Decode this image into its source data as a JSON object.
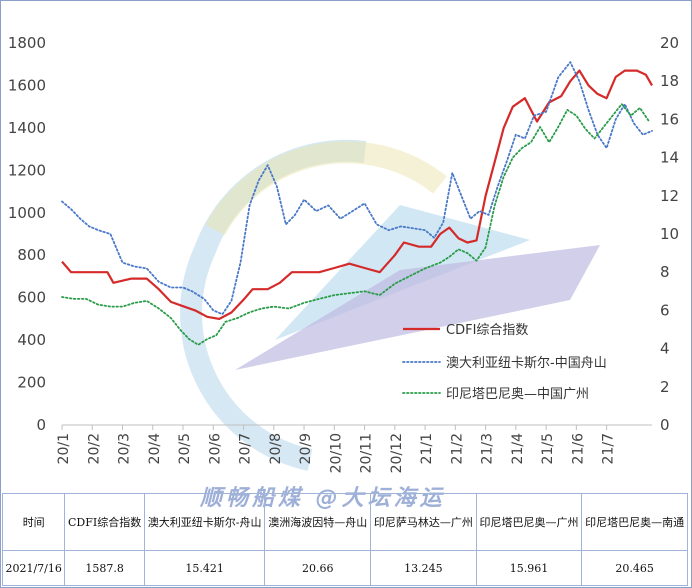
{
  "chart_data": {
    "type": "line",
    "title": "",
    "xlabel": "",
    "ylabel": "",
    "ylim": [
      0,
      1800
    ],
    "y2lim": [
      0,
      20
    ],
    "yticks": [
      0,
      200,
      400,
      600,
      800,
      1000,
      1200,
      1400,
      1600,
      1800
    ],
    "y2ticks": [
      0,
      2,
      4,
      6,
      8,
      10,
      12,
      14,
      16,
      18,
      20
    ],
    "xlim": [
      0,
      19.5
    ],
    "x_tick_labels": [
      "20/1",
      "20/2",
      "20/3",
      "20/4",
      "20/5",
      "20/6",
      "20/7",
      "20/8",
      "20/9",
      "20/10",
      "20/11",
      "20/12",
      "21/1",
      "21/2",
      "21/3",
      "21/4",
      "21/5",
      "21/6",
      "21/7"
    ],
    "legend_position": "center-right",
    "series": [
      {
        "name": "CDFI综合指数",
        "axis": "left",
        "color": "#d42a2a",
        "style": "solid",
        "x": [
          0,
          0.3,
          0.8,
          1.5,
          1.7,
          2.3,
          2.8,
          3.2,
          3.6,
          4.0,
          4.4,
          4.8,
          5.2,
          5.6,
          6.0,
          6.3,
          6.8,
          7.2,
          7.6,
          8.0,
          8.5,
          9.0,
          9.5,
          10.0,
          10.5,
          11.0,
          11.3,
          11.8,
          12.2,
          12.5,
          12.8,
          13.1,
          13.4,
          13.7,
          14.0,
          14.3,
          14.6,
          14.9,
          15.3,
          15.7,
          16.1,
          16.5,
          16.8,
          17.1,
          17.4,
          17.7,
          18.0,
          18.3,
          18.6,
          19.0,
          19.3,
          19.5
        ],
        "y": [
          770,
          720,
          720,
          720,
          670,
          690,
          690,
          640,
          580,
          560,
          540,
          510,
          500,
          530,
          590,
          640,
          640,
          670,
          720,
          720,
          720,
          740,
          760,
          740,
          720,
          800,
          860,
          840,
          840,
          900,
          930,
          880,
          860,
          870,
          1080,
          1240,
          1400,
          1500,
          1540,
          1430,
          1520,
          1550,
          1620,
          1670,
          1600,
          1560,
          1540,
          1640,
          1670,
          1670,
          1650,
          1600
        ]
      },
      {
        "name": "澳大利亚纽卡斯尔-中国舟山",
        "axis": "right",
        "color": "#4a78c8",
        "style": "dotted",
        "x": [
          0,
          0.3,
          0.6,
          0.9,
          1.2,
          1.6,
          2.0,
          2.4,
          2.8,
          3.2,
          3.6,
          4.0,
          4.3,
          4.7,
          5.0,
          5.3,
          5.6,
          5.9,
          6.2,
          6.5,
          6.8,
          7.1,
          7.4,
          7.7,
          8.0,
          8.4,
          8.8,
          9.2,
          9.6,
          10.0,
          10.4,
          10.8,
          11.2,
          11.6,
          12.0,
          12.3,
          12.6,
          12.9,
          13.2,
          13.5,
          13.8,
          14.1,
          14.4,
          14.7,
          15.0,
          15.3,
          15.6,
          16.0,
          16.4,
          16.8,
          17.1,
          17.4,
          17.7,
          18.0,
          18.3,
          18.6,
          18.9,
          19.2,
          19.5
        ],
        "y": [
          11.7,
          11.3,
          10.8,
          10.4,
          10.2,
          10.0,
          8.5,
          8.3,
          8.2,
          7.5,
          7.2,
          7.2,
          7.0,
          6.6,
          6.0,
          5.8,
          6.5,
          8.5,
          11.5,
          12.8,
          13.6,
          12.5,
          10.5,
          11.0,
          11.8,
          11.2,
          11.5,
          10.8,
          11.2,
          11.6,
          10.5,
          10.2,
          10.4,
          10.3,
          10.2,
          9.8,
          10.6,
          13.2,
          12.0,
          10.8,
          11.2,
          11.0,
          12.5,
          13.8,
          15.2,
          15.0,
          16.2,
          16.4,
          18.2,
          19.0,
          18.0,
          16.5,
          15.2,
          14.5,
          16.0,
          16.8,
          15.8,
          15.2,
          15.4
        ]
      },
      {
        "name": "印尼塔巴尼奥—中国广州",
        "axis": "right",
        "color": "#2a9c4a",
        "style": "dotted",
        "x": [
          0,
          0.4,
          0.8,
          1.2,
          1.6,
          2.0,
          2.4,
          2.8,
          3.2,
          3.6,
          3.9,
          4.2,
          4.5,
          4.8,
          5.1,
          5.4,
          5.8,
          6.2,
          6.6,
          7.0,
          7.5,
          8.0,
          8.5,
          9.0,
          9.5,
          10.0,
          10.5,
          11.0,
          11.5,
          12.0,
          12.5,
          12.8,
          13.1,
          13.4,
          13.7,
          14.0,
          14.3,
          14.6,
          14.9,
          15.2,
          15.5,
          15.8,
          16.1,
          16.4,
          16.7,
          17.0,
          17.3,
          17.6,
          17.9,
          18.2,
          18.5,
          18.8,
          19.1,
          19.4
        ],
        "y": [
          6.7,
          6.6,
          6.6,
          6.3,
          6.2,
          6.2,
          6.4,
          6.5,
          6.1,
          5.6,
          5.0,
          4.5,
          4.2,
          4.5,
          4.7,
          5.4,
          5.6,
          5.9,
          6.1,
          6.2,
          6.1,
          6.4,
          6.6,
          6.8,
          6.9,
          7.0,
          6.8,
          7.4,
          7.8,
          8.2,
          8.5,
          8.8,
          9.2,
          9.0,
          8.6,
          9.3,
          11.5,
          13.0,
          14.0,
          14.5,
          14.8,
          15.6,
          14.8,
          15.6,
          16.5,
          16.2,
          15.5,
          15.0,
          15.6,
          16.2,
          16.8,
          16.2,
          16.6,
          15.9
        ]
      }
    ]
  },
  "watermark": "顺畅船煤 @大坛海运",
  "table": {
    "headers": [
      "时间",
      "CDFI综合指数",
      "澳大利亚纽卡斯尔-舟山",
      "澳洲海波因特—舟山",
      "印尼萨马林达—广州",
      "印尼塔巴尼奥—广州",
      "印尼塔巴尼奥—南通"
    ],
    "row": [
      "2021/7/16",
      "1587.8",
      "15.421",
      "20.66",
      "13.245",
      "15.961",
      "20.465"
    ]
  }
}
